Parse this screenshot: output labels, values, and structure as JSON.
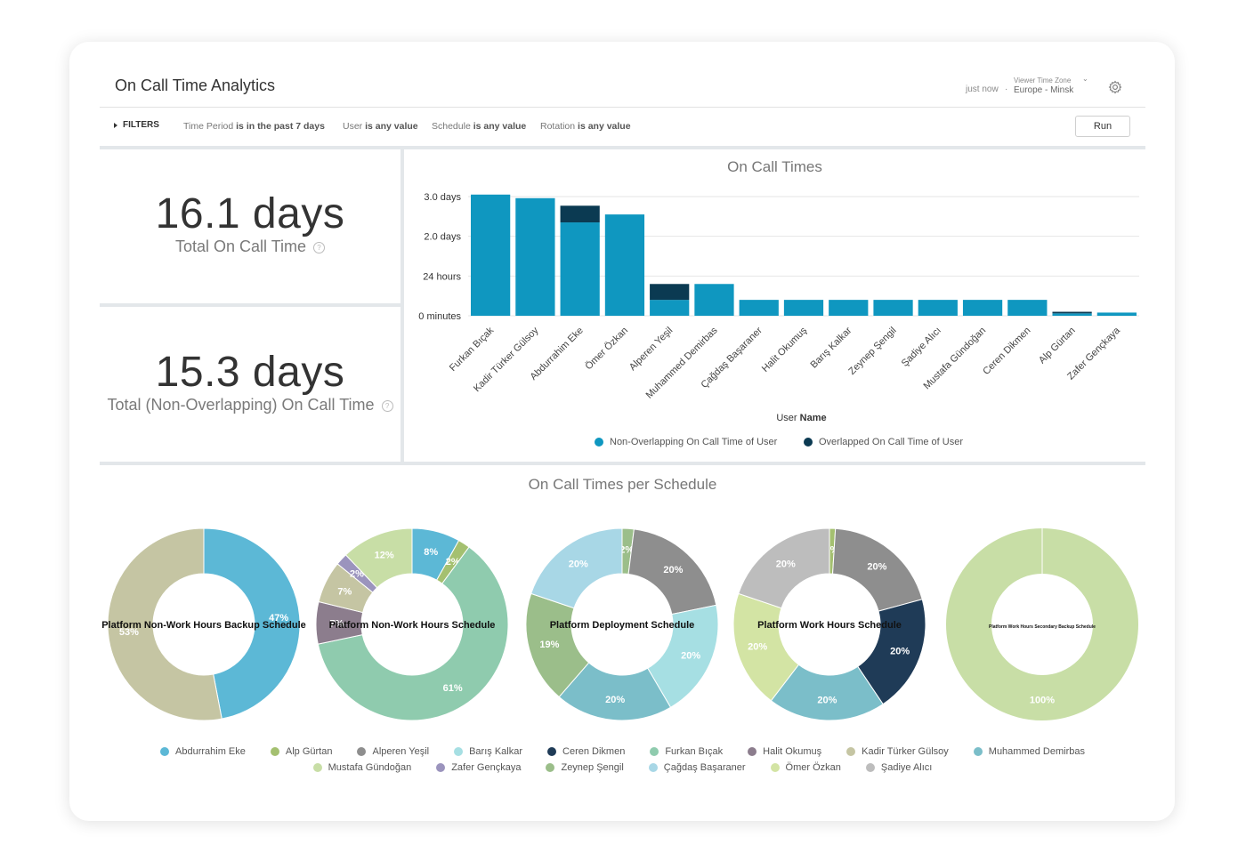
{
  "header": {
    "title": "On Call Time Analytics",
    "updated": "just now",
    "separator": "·",
    "timezone_label": "Viewer Time Zone",
    "timezone_value": "Europe - Minsk",
    "settings_icon": "gear-icon"
  },
  "filters": {
    "toggle_label": "FILTERS",
    "items": [
      {
        "field": "Time Period",
        "condition": "is in the past 7 days"
      },
      {
        "field": "User",
        "condition": "is any value"
      },
      {
        "field": "Schedule",
        "condition": "is any value"
      },
      {
        "field": "Rotation",
        "condition": "is any value"
      }
    ],
    "run_label": "Run"
  },
  "kpis": [
    {
      "value": "16.1 days",
      "label": "Total On Call Time",
      "help_icon": "question-icon",
      "help_glyph": "?"
    },
    {
      "value": "15.3 days",
      "label": "Total (Non-Overlapping) On Call Time",
      "help_icon": "question-icon",
      "help_glyph": "?"
    }
  ],
  "colors": {
    "non_overlapping": "#0f97c0",
    "overlapped": "#0b3a52",
    "grid": "#e6e6e6"
  },
  "bar_chart": {
    "title": "On Call Times",
    "xlabel_prefix": "User",
    "xlabel_bold": "Name",
    "legend": [
      {
        "label": "Non-Overlapping On Call Time of User",
        "color": "#0f97c0"
      },
      {
        "label": "Overlapped On Call Time of User",
        "color": "#0b3a52"
      }
    ]
  },
  "chart_data": [
    {
      "type": "bar",
      "title": "On Call Times",
      "xlabel": "User Name",
      "ylabel": "",
      "y_unit": "days",
      "ylim": [
        0,
        3.0
      ],
      "y_ticks": [
        {
          "value": 0,
          "label": "0 minutes"
        },
        {
          "value": 1,
          "label": "24 hours"
        },
        {
          "value": 2,
          "label": "2.0 days"
        },
        {
          "value": 3,
          "label": "3.0 days"
        }
      ],
      "stacked": true,
      "categories": [
        "Furkan Bıçak",
        "Kadir Türker Gülsoy",
        "Abdurrahim Eke",
        "Ömer Özkan",
        "Alperen Yeşil",
        "Muhammed Demirbas",
        "Çağdaş Başaraner",
        "Halit Okumuş",
        "Barış Kalkar",
        "Zeynep Şengil",
        "Şadiye Alıcı",
        "Mustafa Gündoğan",
        "Ceren Dikmen",
        "Alp Gürtan",
        "Zafer Gençkaya"
      ],
      "series": [
        {
          "name": "Non-Overlapping On Call Time of User",
          "color": "#0f97c0",
          "values": [
            3.05,
            2.96,
            2.35,
            2.55,
            0.4,
            0.8,
            0.4,
            0.4,
            0.4,
            0.4,
            0.4,
            0.4,
            0.4,
            0.06,
            0.08
          ]
        },
        {
          "name": "Overlapped On Call Time of User",
          "color": "#0b3a52",
          "values": [
            0,
            0,
            0.42,
            0,
            0.4,
            0,
            0,
            0,
            0,
            0,
            0,
            0,
            0,
            0.04,
            0
          ]
        }
      ]
    },
    {
      "type": "pie",
      "title": "Platform Non-Work Hours Backup Schedule",
      "slices": [
        {
          "name": "Abdurrahim Eke",
          "value": 47,
          "label": "47%"
        },
        {
          "name": "Kadir Türker Gülsoy",
          "value": 53,
          "label": "53%"
        }
      ]
    },
    {
      "type": "pie",
      "title": "Platform Non-Work Hours Schedule",
      "slices": [
        {
          "name": "Abdurrahim Eke",
          "value": 8,
          "label": "8%"
        },
        {
          "name": "Alp Gürtan",
          "value": 2,
          "label": "2%"
        },
        {
          "name": "Furkan Bıçak",
          "value": 61,
          "label": "61%"
        },
        {
          "name": "Halit Okumuş",
          "value": 7,
          "label": "7%"
        },
        {
          "name": "Kadir Türker Gülsoy",
          "value": 7,
          "label": "7%"
        },
        {
          "name": "Zafer Gençkaya",
          "value": 2,
          "label": "2%"
        },
        {
          "name": "Mustafa Gündoğan",
          "value": 12,
          "label": "12%"
        }
      ]
    },
    {
      "type": "pie",
      "title": "Platform Deployment Schedule",
      "slices": [
        {
          "name": "Zeynep Şengil",
          "value": 2,
          "label": "2%"
        },
        {
          "name": "Alperen Yeşil",
          "value": 20,
          "label": "20%"
        },
        {
          "name": "Barış Kalkar",
          "value": 20,
          "label": "20%"
        },
        {
          "name": "Muhammed Demirbas",
          "value": 20,
          "label": "20%"
        },
        {
          "name": "Zeynep Şengil",
          "value": 19,
          "label": "19%"
        },
        {
          "name": "Çağdaş Başaraner",
          "value": 20,
          "label": "20%"
        }
      ]
    },
    {
      "type": "pie",
      "title": "Platform Work Hours Schedule",
      "slices": [
        {
          "name": "Alp Gürtan",
          "value": 1,
          "label": "1%"
        },
        {
          "name": "Alperen Yeşil",
          "value": 20,
          "label": "20%"
        },
        {
          "name": "Ceren Dikmen",
          "value": 20,
          "label": "20%"
        },
        {
          "name": "Muhammed Demirbas",
          "value": 20,
          "label": "20%"
        },
        {
          "name": "Ömer Özkan",
          "value": 20,
          "label": "20%"
        },
        {
          "name": "Şadiye Alıcı",
          "value": 20,
          "label": "20%"
        }
      ]
    },
    {
      "type": "pie",
      "title": "Platform Work Hours Secondary Backup Schedule",
      "slices": [
        {
          "name": "Mustafa Gündoğan",
          "value": 100,
          "label": "100%"
        }
      ]
    }
  ],
  "donuts_title": "On Call Times per Schedule",
  "donut_legend": [
    {
      "label": "Abdurrahim Eke",
      "color": "#5cb8d6"
    },
    {
      "label": "Alp Gürtan",
      "color": "#a4c070"
    },
    {
      "label": "Alperen Yeşil",
      "color": "#8e8e8e"
    },
    {
      "label": "Barış Kalkar",
      "color": "#a6dfe3"
    },
    {
      "label": "Ceren Dikmen",
      "color": "#1f3b57"
    },
    {
      "label": "Furkan Bıçak",
      "color": "#8fcbae"
    },
    {
      "label": "Halit Okumuş",
      "color": "#8c7d8d"
    },
    {
      "label": "Kadir Türker Gülsoy",
      "color": "#c5c5a3"
    },
    {
      "label": "Muhammed Demirbas",
      "color": "#7bbec9"
    },
    {
      "label": "Mustafa Gündoğan",
      "color": "#c8dea6"
    },
    {
      "label": "Zafer Gençkaya",
      "color": "#9b94bd"
    },
    {
      "label": "Zeynep Şengil",
      "color": "#9bbe8a"
    },
    {
      "label": "Çağdaş Başaraner",
      "color": "#a8d7e6"
    },
    {
      "label": "Ömer Özkan",
      "color": "#d3e4a4"
    },
    {
      "label": "Şadiye Alıcı",
      "color": "#bdbdbd"
    }
  ]
}
